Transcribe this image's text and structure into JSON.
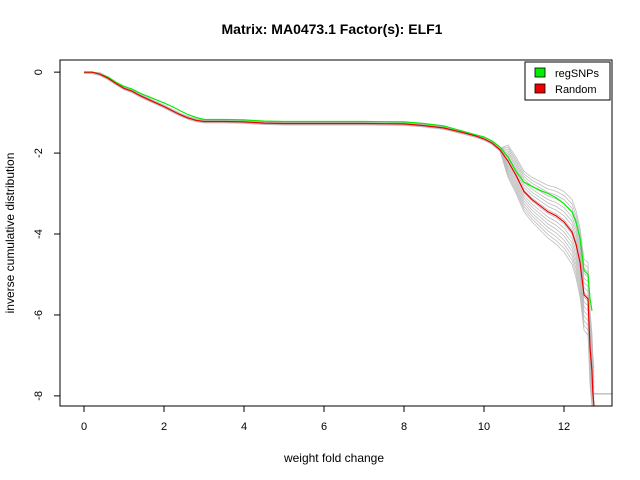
{
  "chart_data": {
    "type": "line",
    "title": "Matrix: MA0473.1 Factor(s): ELF1",
    "xlabel": "weight fold change",
    "ylabel": "inverse cumulative distribution",
    "xlim": [
      -0.6,
      13.2
    ],
    "ylim": [
      -8.25,
      0.3
    ],
    "x_ticks": [
      0,
      2,
      4,
      6,
      8,
      10,
      12
    ],
    "y_ticks": [
      0,
      -2,
      -4,
      -6,
      -8
    ],
    "grid": false,
    "legend_position": "top-right",
    "legend": [
      {
        "label": "regSNPs",
        "color": "#00ee00"
      },
      {
        "label": "Random",
        "color": "#ee0000"
      }
    ],
    "series": [
      {
        "name": "regSNPs",
        "color": "#00ee00",
        "x": [
          0,
          0.2,
          0.4,
          0.6,
          0.8,
          1.0,
          1.2,
          1.4,
          1.6,
          1.8,
          2.0,
          2.2,
          2.4,
          2.6,
          2.8,
          3.0,
          3.5,
          4.0,
          4.5,
          5,
          6,
          7,
          8,
          8.5,
          9.0,
          9.5,
          9.8,
          10.0,
          10.2,
          10.4,
          10.6,
          10.8,
          11.0,
          11.2,
          11.4,
          11.6,
          11.8,
          12.0,
          12.2,
          12.3,
          12.4,
          12.5,
          12.6,
          12.65,
          12.7
        ],
        "y": [
          0,
          0,
          -0.05,
          -0.12,
          -0.25,
          -0.35,
          -0.42,
          -0.52,
          -0.6,
          -0.68,
          -0.76,
          -0.85,
          -0.95,
          -1.05,
          -1.12,
          -1.17,
          -1.17,
          -1.18,
          -1.21,
          -1.22,
          -1.22,
          -1.22,
          -1.23,
          -1.27,
          -1.33,
          -1.47,
          -1.55,
          -1.6,
          -1.7,
          -1.85,
          -2.1,
          -2.45,
          -2.72,
          -2.82,
          -2.92,
          -3.0,
          -3.1,
          -3.25,
          -3.45,
          -3.7,
          -4.1,
          -4.9,
          -5.0,
          -5.6,
          -5.9
        ]
      },
      {
        "name": "Random",
        "color": "#ee0000",
        "x": [
          0,
          0.2,
          0.4,
          0.6,
          0.8,
          1.0,
          1.2,
          1.4,
          1.6,
          1.8,
          2.0,
          2.2,
          2.4,
          2.6,
          2.8,
          3.0,
          3.5,
          4.0,
          4.5,
          5,
          6,
          7,
          8,
          8.5,
          9.0,
          9.5,
          9.8,
          10.0,
          10.2,
          10.4,
          10.6,
          10.8,
          11.0,
          11.2,
          11.4,
          11.6,
          11.8,
          12.0,
          12.2,
          12.3,
          12.4,
          12.5,
          12.6,
          12.65,
          12.7,
          12.72,
          12.75
        ],
        "y": [
          0,
          0,
          -0.05,
          -0.15,
          -0.28,
          -0.4,
          -0.47,
          -0.58,
          -0.67,
          -0.76,
          -0.85,
          -0.95,
          -1.05,
          -1.13,
          -1.19,
          -1.22,
          -1.22,
          -1.23,
          -1.26,
          -1.27,
          -1.27,
          -1.27,
          -1.28,
          -1.32,
          -1.38,
          -1.5,
          -1.58,
          -1.65,
          -1.75,
          -1.92,
          -2.2,
          -2.55,
          -2.95,
          -3.15,
          -3.3,
          -3.45,
          -3.55,
          -3.7,
          -3.95,
          -4.25,
          -4.7,
          -5.5,
          -5.6,
          -6.8,
          -7.4,
          -7.9,
          -8.25
        ]
      }
    ]
  }
}
